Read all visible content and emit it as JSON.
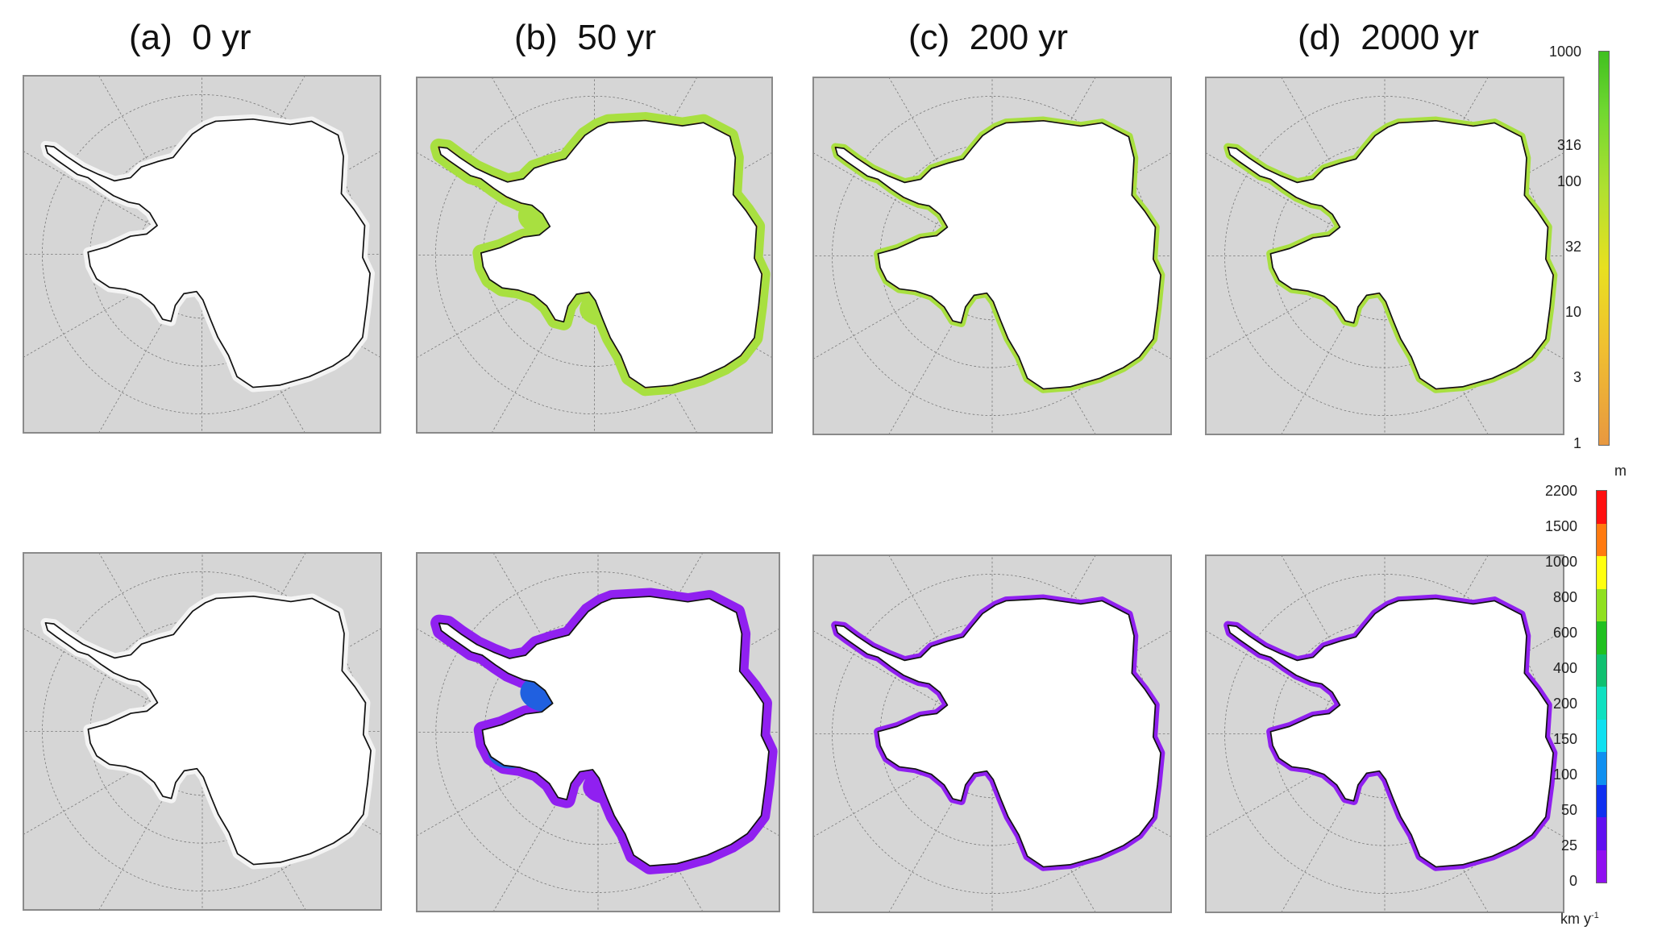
{
  "panels": [
    {
      "label": "(a)  0 yr"
    },
    {
      "label": "(b)  50 yr"
    },
    {
      "label": "(c)  200 yr"
    },
    {
      "label": "(d)  2000 yr"
    }
  ],
  "thickness_colorbar": {
    "ticks": [
      "1000",
      "316",
      "100",
      "32",
      "10",
      "3",
      "1"
    ],
    "unit": "m",
    "colors": [
      "#e8a040",
      "#f0c030",
      "#e8e020",
      "#b8e030",
      "#70d830",
      "#40c020"
    ]
  },
  "velocity_colorbar": {
    "ticks": [
      "2200",
      "1500",
      "1000",
      "800",
      "600",
      "400",
      "200",
      "150",
      "100",
      "50",
      "25",
      "0"
    ],
    "unit_base": "km y",
    "unit_exp": "-1",
    "colors": [
      "#ff1010",
      "#ff7a10",
      "#ffff10",
      "#90e020",
      "#20c020",
      "#10c070",
      "#10e0c0",
      "#10e0f0",
      "#1090f0",
      "#1030f0",
      "#6010f0",
      "#9010f0"
    ]
  },
  "fill_colors": {
    "thickness_shelf": "#a8e040",
    "thickness_edge": "#f0c030",
    "velocity_shelf": "#9020f0",
    "velocity_fast": "#2060e0"
  }
}
